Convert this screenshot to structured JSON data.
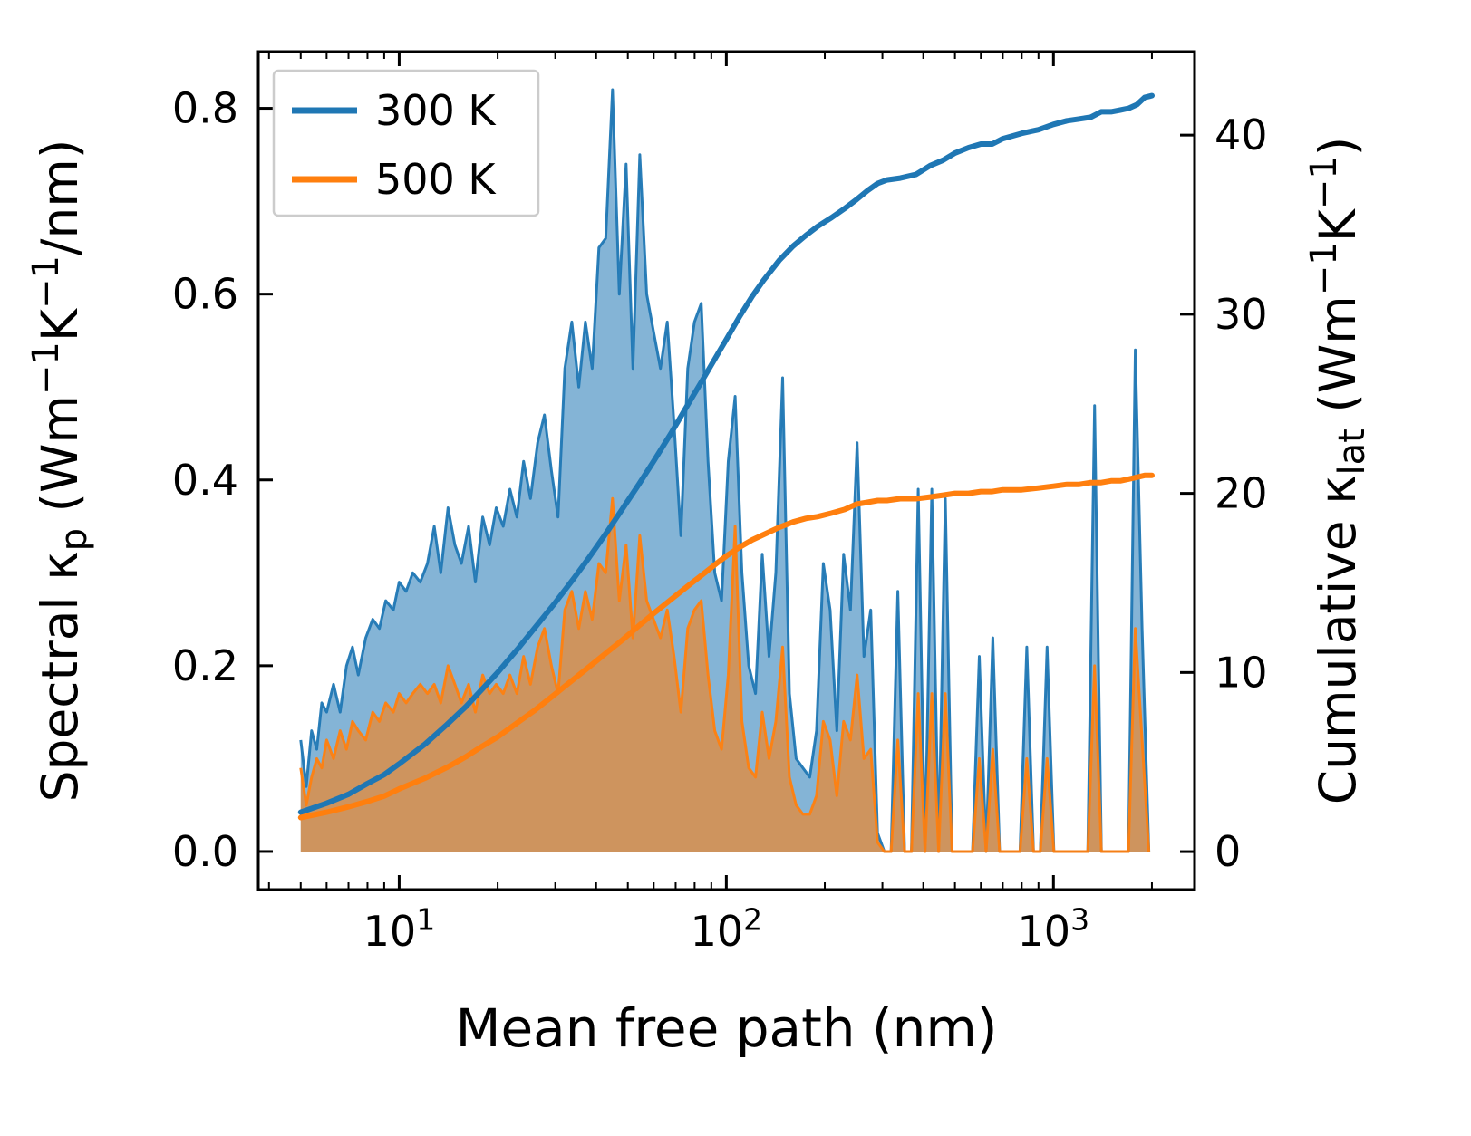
{
  "figure": {
    "background": "#ffffff"
  },
  "chart_data": {
    "type": "area",
    "title": "",
    "xlabel": "Mean free path (nm)",
    "ylabel_left": "Spectral κ_{p} (Wm^{−1}K^{−1}/nm)",
    "ylabel_right": "Cumulative κ_{lat} (Wm^{−1}K^{−1})",
    "x_scale": "log",
    "xlim": [
      3.71,
      2700
    ],
    "ylim_left": [
      -0.041,
      0.861
    ],
    "ylim_right": [
      -2.12,
      44.66
    ],
    "x_major_ticks": [
      10,
      100,
      1000
    ],
    "x_major_tick_labels": [
      "10^{1}",
      "10^{2}",
      "10^{3}"
    ],
    "y_left_ticks": [
      0.0,
      0.2,
      0.4,
      0.6,
      0.8
    ],
    "y_left_tick_labels": [
      "0.0",
      "0.2",
      "0.4",
      "0.6",
      "0.8"
    ],
    "y_right_ticks": [
      0,
      10,
      20,
      30,
      40
    ],
    "y_right_tick_labels": [
      "0",
      "10",
      "20",
      "30",
      "40"
    ],
    "grid": false,
    "colors": {
      "blue": "#1f77b4",
      "orange": "#ff7f0e"
    },
    "legend": {
      "position": "upper left",
      "entries": [
        {
          "label": "300 K",
          "color": "#1f77b4"
        },
        {
          "label": "500 K",
          "color": "#ff7f0e"
        }
      ]
    },
    "series": [
      {
        "name": "spectral-300k",
        "axis": "left",
        "style": "filled_area",
        "color": "#1f77b4",
        "fill_opacity": 0.55,
        "x": [
          5.0,
          5.2,
          5.4,
          5.6,
          5.8,
          6.0,
          6.3,
          6.6,
          6.9,
          7.2,
          7.5,
          7.9,
          8.3,
          8.7,
          9.1,
          9.6,
          10.0,
          10.5,
          11.0,
          11.6,
          12.2,
          12.8,
          13.4,
          14.1,
          14.8,
          15.5,
          16.3,
          17.1,
          18.0,
          18.9,
          19.8,
          20.8,
          21.8,
          22.9,
          24.0,
          25.2,
          26.5,
          27.8,
          29.2,
          30.6,
          32.1,
          33.7,
          35.4,
          37.1,
          38.9,
          40.8,
          42.8,
          44.9,
          47.1,
          49.4,
          51.8,
          54.4,
          57.1,
          59.9,
          62.9,
          66.0,
          69.2,
          72.6,
          76.2,
          79.9,
          83.8,
          87.9,
          92.2,
          96.7,
          101.4,
          106.4,
          111.6,
          117.1,
          122.8,
          128.8,
          135.1,
          141.7,
          148.6,
          155.9,
          163.5,
          171.5,
          179.9,
          188.7,
          197.9,
          207.6,
          217.7,
          228.4,
          239.5,
          251.2,
          263.5,
          276.4,
          289.9,
          304.0,
          318.9,
          334.5,
          350.8,
          368.0,
          386.0,
          404.9,
          424.7,
          445.5,
          467.3,
          490.1,
          514.1,
          539.2,
          565.6,
          593.3,
          622.3,
          652.7,
          684.6,
          718.1,
          753.2,
          790.0,
          828.7,
          869.2,
          911.7,
          956.3,
          1003.1,
          1052.2,
          1103.6,
          1157.6,
          1214.2,
          1273.6,
          1335.9,
          1401.3,
          1469.8,
          1541.7,
          1617.1,
          1696.2,
          1779.2,
          1866.2,
          1957.5
        ],
        "y": [
          0.12,
          0.07,
          0.13,
          0.11,
          0.16,
          0.15,
          0.18,
          0.15,
          0.2,
          0.22,
          0.19,
          0.23,
          0.25,
          0.24,
          0.27,
          0.26,
          0.29,
          0.28,
          0.3,
          0.29,
          0.31,
          0.35,
          0.3,
          0.37,
          0.33,
          0.31,
          0.35,
          0.29,
          0.36,
          0.33,
          0.37,
          0.35,
          0.39,
          0.36,
          0.42,
          0.38,
          0.44,
          0.47,
          0.41,
          0.36,
          0.52,
          0.57,
          0.5,
          0.57,
          0.52,
          0.65,
          0.66,
          0.82,
          0.6,
          0.74,
          0.52,
          0.75,
          0.6,
          0.56,
          0.52,
          0.57,
          0.46,
          0.34,
          0.52,
          0.57,
          0.59,
          0.42,
          0.3,
          0.27,
          0.42,
          0.49,
          0.3,
          0.2,
          0.17,
          0.32,
          0.21,
          0.3,
          0.51,
          0.17,
          0.1,
          0.09,
          0.08,
          0.13,
          0.31,
          0.26,
          0.13,
          0.32,
          0.26,
          0.44,
          0.21,
          0.26,
          0.02,
          0.0,
          0.0,
          0.28,
          0.0,
          0.0,
          0.39,
          0.0,
          0.39,
          0.0,
          0.38,
          0.0,
          0.0,
          0.0,
          0.0,
          0.21,
          0.0,
          0.23,
          0.0,
          0.0,
          0.0,
          0.0,
          0.22,
          0.0,
          0.0,
          0.22,
          0.0,
          0.0,
          0.0,
          0.0,
          0.0,
          0.0,
          0.48,
          0.0,
          0.0,
          0.0,
          0.0,
          0.0,
          0.54,
          0.24,
          0.0
        ]
      },
      {
        "name": "spectral-500k",
        "axis": "left",
        "style": "filled_area",
        "color": "#ff7f0e",
        "fill_opacity": 0.6,
        "x": [
          5.0,
          5.2,
          5.4,
          5.6,
          5.8,
          6.0,
          6.3,
          6.6,
          6.9,
          7.2,
          7.5,
          7.9,
          8.3,
          8.7,
          9.1,
          9.6,
          10.0,
          10.5,
          11.0,
          11.6,
          12.2,
          12.8,
          13.4,
          14.1,
          14.8,
          15.5,
          16.3,
          17.1,
          18.0,
          18.9,
          19.8,
          20.8,
          21.8,
          22.9,
          24.0,
          25.2,
          26.5,
          27.8,
          29.2,
          30.6,
          32.1,
          33.7,
          35.4,
          37.1,
          38.9,
          40.8,
          42.8,
          44.9,
          47.1,
          49.4,
          51.8,
          54.4,
          57.1,
          59.9,
          62.9,
          66.0,
          69.2,
          72.6,
          76.2,
          79.9,
          83.8,
          87.9,
          92.2,
          96.7,
          101.4,
          106.4,
          111.6,
          117.1,
          122.8,
          128.8,
          135.1,
          141.7,
          148.6,
          155.9,
          163.5,
          171.5,
          179.9,
          188.7,
          197.9,
          207.6,
          217.7,
          228.4,
          239.5,
          251.2,
          263.5,
          276.4,
          289.9,
          304.0,
          318.9,
          334.5,
          350.8,
          368.0,
          386.0,
          404.9,
          424.7,
          445.5,
          467.3,
          490.1,
          514.1,
          539.2,
          565.6,
          593.3,
          622.3,
          652.7,
          684.6,
          718.1,
          753.2,
          790.0,
          828.7,
          869.2,
          911.7,
          956.3,
          1003.1,
          1052.2,
          1103.6,
          1157.6,
          1214.2,
          1273.6,
          1335.9,
          1401.3,
          1469.8,
          1541.7,
          1617.1,
          1696.2,
          1779.2,
          1866.2,
          1957.5
        ],
        "y": [
          0.09,
          0.05,
          0.08,
          0.1,
          0.09,
          0.12,
          0.1,
          0.13,
          0.11,
          0.14,
          0.13,
          0.12,
          0.15,
          0.14,
          0.16,
          0.15,
          0.17,
          0.16,
          0.17,
          0.18,
          0.17,
          0.18,
          0.16,
          0.2,
          0.18,
          0.16,
          0.18,
          0.15,
          0.19,
          0.17,
          0.18,
          0.17,
          0.19,
          0.17,
          0.21,
          0.18,
          0.22,
          0.24,
          0.2,
          0.17,
          0.26,
          0.28,
          0.24,
          0.28,
          0.25,
          0.31,
          0.3,
          0.38,
          0.27,
          0.33,
          0.23,
          0.34,
          0.27,
          0.25,
          0.23,
          0.26,
          0.21,
          0.15,
          0.24,
          0.26,
          0.27,
          0.19,
          0.13,
          0.11,
          0.19,
          0.35,
          0.14,
          0.09,
          0.08,
          0.15,
          0.1,
          0.14,
          0.22,
          0.08,
          0.05,
          0.04,
          0.04,
          0.06,
          0.14,
          0.12,
          0.06,
          0.14,
          0.12,
          0.19,
          0.1,
          0.11,
          0.01,
          0.0,
          0.0,
          0.12,
          0.0,
          0.0,
          0.17,
          0.0,
          0.17,
          0.0,
          0.17,
          0.0,
          0.0,
          0.0,
          0.0,
          0.1,
          0.0,
          0.11,
          0.0,
          0.0,
          0.0,
          0.0,
          0.1,
          0.0,
          0.0,
          0.1,
          0.0,
          0.0,
          0.0,
          0.0,
          0.0,
          0.0,
          0.2,
          0.0,
          0.0,
          0.0,
          0.0,
          0.0,
          0.24,
          0.12,
          0.0
        ]
      },
      {
        "name": "cumulative-300k",
        "axis": "right",
        "style": "line",
        "color": "#1f77b4",
        "x": [
          5,
          6,
          7,
          8,
          9,
          10,
          12,
          14,
          16,
          18,
          20,
          23,
          26,
          30,
          34,
          38,
          43,
          48,
          54,
          60,
          68,
          76,
          85,
          95,
          100,
          110,
          120,
          130,
          145,
          160,
          175,
          190,
          210,
          230,
          250,
          270,
          290,
          310,
          340,
          380,
          420,
          460,
          500,
          550,
          600,
          650,
          700,
          800,
          900,
          1000,
          1100,
          1200,
          1300,
          1400,
          1500,
          1600,
          1700,
          1800,
          1900,
          2000
        ],
        "y": [
          2.2,
          2.7,
          3.2,
          3.8,
          4.3,
          4.9,
          6.0,
          7.1,
          8.1,
          9.1,
          10.0,
          11.3,
          12.5,
          13.9,
          15.2,
          16.4,
          17.8,
          19.1,
          20.5,
          21.8,
          23.4,
          24.9,
          26.4,
          27.9,
          28.6,
          29.9,
          31.0,
          31.9,
          33.0,
          33.8,
          34.4,
          34.9,
          35.4,
          35.9,
          36.4,
          36.9,
          37.3,
          37.5,
          37.6,
          37.8,
          38.3,
          38.6,
          39.0,
          39.3,
          39.5,
          39.5,
          39.8,
          40.1,
          40.3,
          40.6,
          40.8,
          40.9,
          41.0,
          41.3,
          41.3,
          41.4,
          41.5,
          41.7,
          42.1,
          42.2
        ]
      },
      {
        "name": "cumulative-500k",
        "axis": "right",
        "style": "line",
        "color": "#ff7f0e",
        "x": [
          5,
          6,
          7,
          8,
          9,
          10,
          12,
          14,
          16,
          18,
          20,
          23,
          26,
          30,
          34,
          38,
          43,
          48,
          54,
          60,
          68,
          76,
          85,
          95,
          100,
          110,
          120,
          130,
          145,
          160,
          175,
          190,
          210,
          230,
          250,
          270,
          290,
          310,
          340,
          380,
          420,
          460,
          500,
          550,
          600,
          650,
          700,
          800,
          900,
          1000,
          1100,
          1200,
          1300,
          1400,
          1500,
          1600,
          1700,
          1800,
          1900,
          2000
        ],
        "y": [
          1.9,
          2.2,
          2.5,
          2.8,
          3.1,
          3.5,
          4.1,
          4.7,
          5.3,
          5.9,
          6.4,
          7.2,
          7.9,
          8.8,
          9.6,
          10.3,
          11.1,
          11.8,
          12.6,
          13.3,
          14.1,
          14.8,
          15.5,
          16.2,
          16.5,
          17.0,
          17.4,
          17.7,
          18.1,
          18.4,
          18.6,
          18.7,
          18.9,
          19.1,
          19.4,
          19.5,
          19.6,
          19.6,
          19.7,
          19.7,
          19.8,
          19.9,
          20.0,
          20.0,
          20.1,
          20.1,
          20.2,
          20.2,
          20.3,
          20.4,
          20.5,
          20.5,
          20.6,
          20.6,
          20.7,
          20.7,
          20.8,
          20.9,
          21.0,
          21.0
        ]
      }
    ]
  }
}
